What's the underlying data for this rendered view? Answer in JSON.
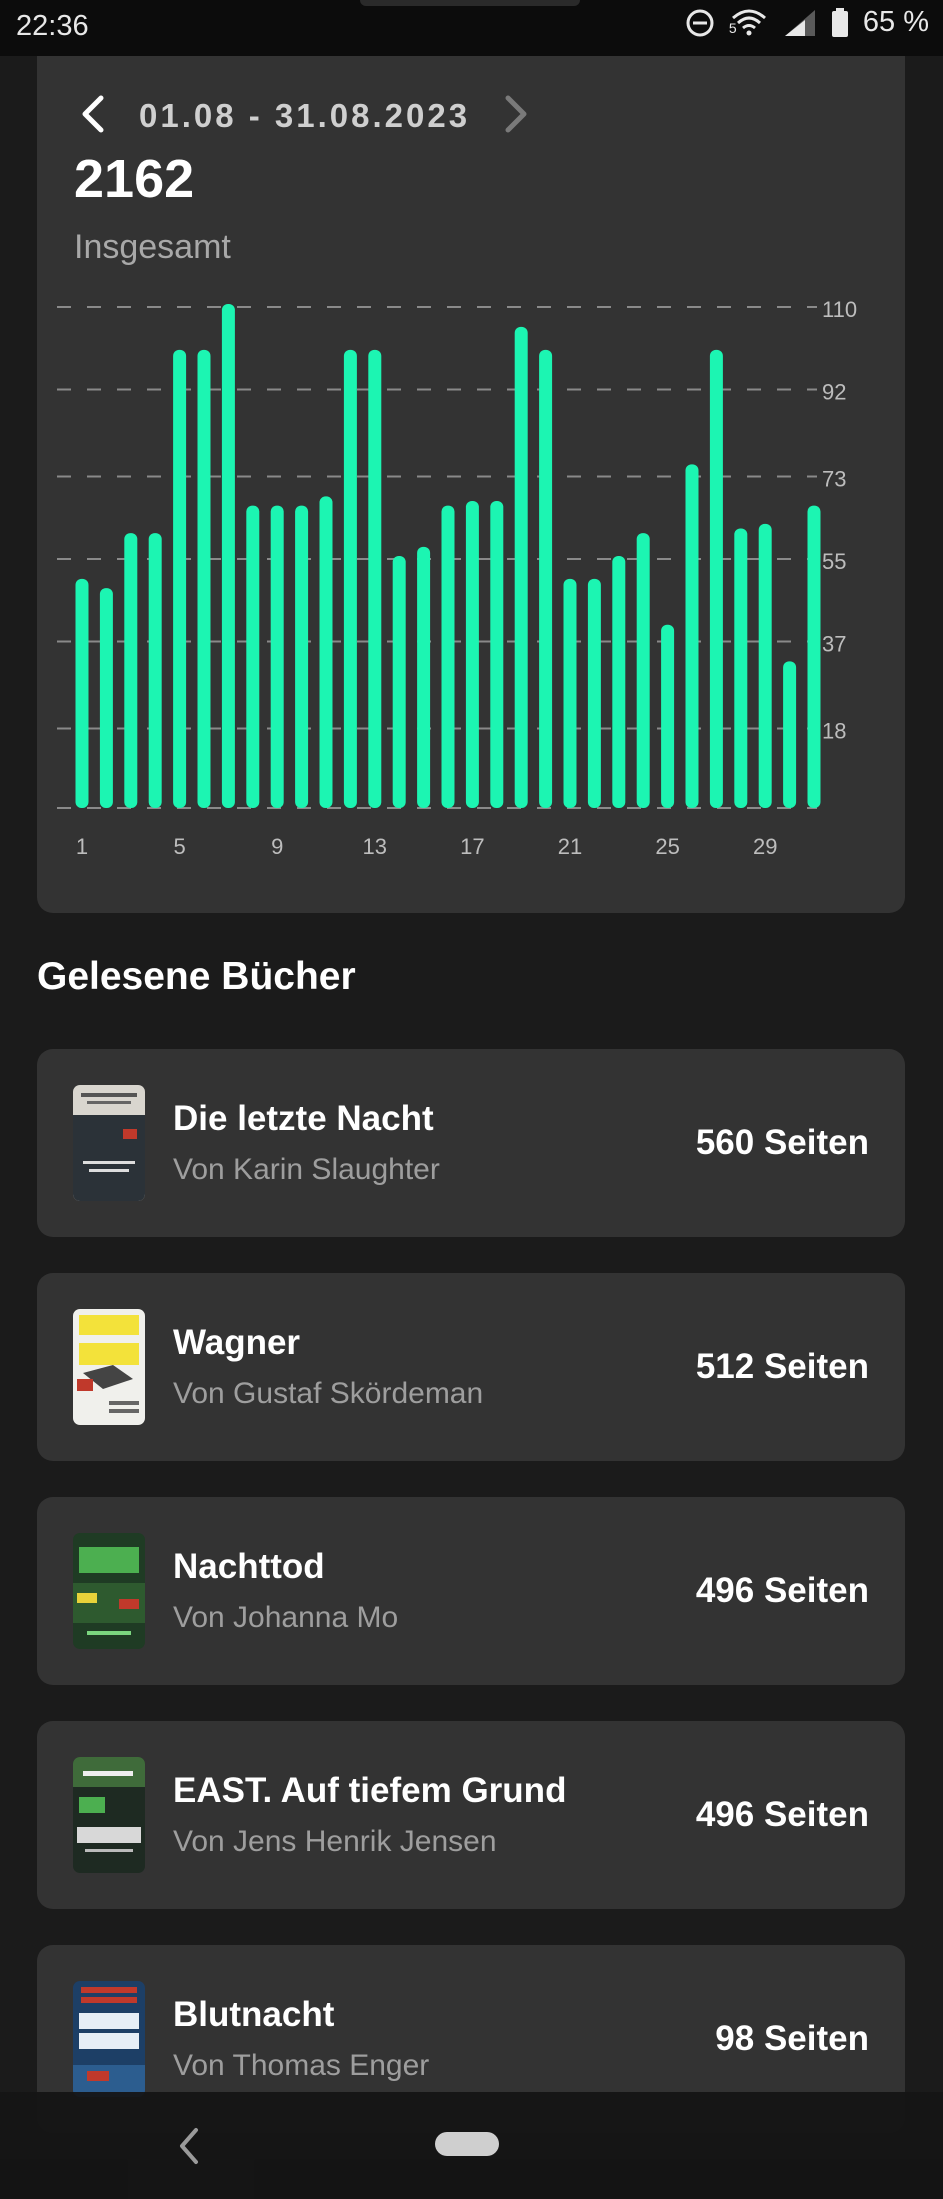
{
  "status_bar": {
    "time": "22:36",
    "battery": "65 %",
    "icons": [
      "do-not-disturb-icon",
      "wifi-icon",
      "signal-icon",
      "battery-icon"
    ],
    "wifi_badge": "5"
  },
  "stats": {
    "date_range": "01.08 - 31.08.2023",
    "total": "2162",
    "total_label": "Insgesamt"
  },
  "chart_data": {
    "type": "bar",
    "x": [
      1,
      2,
      3,
      4,
      5,
      6,
      7,
      8,
      9,
      10,
      11,
      12,
      13,
      14,
      15,
      16,
      17,
      18,
      19,
      20,
      21,
      22,
      23,
      24,
      25,
      26,
      27,
      28,
      29,
      30,
      31
    ],
    "values": [
      50,
      48,
      60,
      60,
      100,
      100,
      110,
      66,
      66,
      66,
      68,
      100,
      100,
      55,
      57,
      66,
      67,
      67,
      105,
      100,
      50,
      50,
      55,
      60,
      40,
      75,
      100,
      61,
      62,
      32,
      66
    ],
    "x_tick_labels": [
      "1",
      "5",
      "9",
      "13",
      "17",
      "21",
      "25",
      "29"
    ],
    "y_tick_labels": [
      "110",
      "92",
      "73",
      "55",
      "37",
      "18"
    ],
    "ylim": [
      0,
      110
    ],
    "grid": "dashed-horizontal",
    "bar_color": "#1cf5b2"
  },
  "section_title": "Gelesene Bücher",
  "books": [
    {
      "title": "Die letzte Nacht",
      "author": "Von Karin Slaughter",
      "pages": "560 Seiten",
      "cover_icon": "book-cover-die-letzte-nacht"
    },
    {
      "title": "Wagner",
      "author": "Von Gustaf Skördeman",
      "pages": "512 Seiten",
      "cover_icon": "book-cover-wagner"
    },
    {
      "title": "Nachttod",
      "author": "Von Johanna Mo",
      "pages": "496 Seiten",
      "cover_icon": "book-cover-nachttod"
    },
    {
      "title": "EAST. Auf tiefem Grund",
      "author": "Von Jens Henrik Jensen",
      "pages": "496 Seiten",
      "cover_icon": "book-cover-east"
    },
    {
      "title": "Blutnacht",
      "author": "Von Thomas Enger",
      "pages": "98 Seiten",
      "cover_icon": "book-cover-blutnacht"
    }
  ],
  "nav_bar": {
    "icons": [
      "back-icon",
      "home-pill-icon"
    ]
  }
}
